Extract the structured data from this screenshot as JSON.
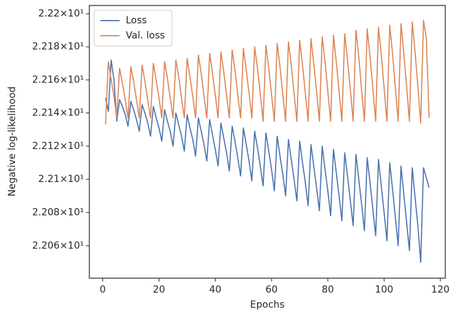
{
  "chart_data": {
    "type": "line",
    "xlabel": "Epochs",
    "ylabel": "Negative log-likelihood",
    "x": [
      1,
      2,
      3,
      4,
      5,
      6,
      7,
      8,
      9,
      10,
      11,
      12,
      13,
      14,
      15,
      16,
      17,
      18,
      19,
      20,
      21,
      22,
      23,
      24,
      25,
      26,
      27,
      28,
      29,
      30,
      31,
      32,
      33,
      34,
      35,
      36,
      37,
      38,
      39,
      40,
      41,
      42,
      43,
      44,
      45,
      46,
      47,
      48,
      49,
      50,
      51,
      52,
      53,
      54,
      55,
      56,
      57,
      58,
      59,
      60,
      61,
      62,
      63,
      64,
      65,
      66,
      67,
      68,
      69,
      70,
      71,
      72,
      73,
      74,
      75,
      76,
      77,
      78,
      79,
      80,
      81,
      82,
      83,
      84,
      85,
      86,
      87,
      88,
      89,
      90,
      91,
      92,
      93,
      94,
      95,
      96,
      97,
      98,
      99,
      100,
      101,
      102,
      103,
      104,
      105,
      106,
      107,
      108,
      109,
      110,
      111,
      112,
      113,
      114,
      115,
      116
    ],
    "series": [
      {
        "name": "Loss",
        "color": "#4c72b0",
        "values": [
          22.149,
          22.141,
          22.172,
          22.16,
          22.135,
          22.148,
          22.144,
          22.139,
          22.132,
          22.147,
          22.142,
          22.136,
          22.129,
          22.145,
          22.14,
          22.134,
          22.126,
          22.144,
          22.137,
          22.131,
          22.123,
          22.142,
          22.135,
          22.129,
          22.12,
          22.14,
          22.133,
          22.126,
          22.117,
          22.139,
          22.131,
          22.124,
          22.114,
          22.137,
          22.129,
          22.121,
          22.111,
          22.136,
          22.127,
          22.118,
          22.108,
          22.134,
          22.125,
          22.116,
          22.105,
          22.132,
          22.123,
          22.113,
          22.102,
          22.131,
          22.121,
          22.111,
          22.099,
          22.129,
          22.119,
          22.108,
          22.096,
          22.128,
          22.117,
          22.106,
          22.093,
          22.126,
          22.114,
          22.103,
          22.09,
          22.124,
          22.112,
          22.1,
          22.087,
          22.123,
          22.11,
          22.098,
          22.084,
          22.121,
          22.108,
          22.095,
          22.081,
          22.12,
          22.106,
          22.093,
          22.078,
          22.118,
          22.104,
          22.09,
          22.075,
          22.116,
          22.102,
          22.087,
          22.072,
          22.115,
          22.1,
          22.085,
          22.069,
          22.113,
          22.098,
          22.082,
          22.066,
          22.112,
          22.096,
          22.08,
          22.063,
          22.11,
          22.094,
          22.077,
          22.06,
          22.108,
          22.091,
          22.074,
          22.057,
          22.107,
          22.089,
          22.072,
          22.05,
          22.107,
          22.101,
          22.095
        ]
      },
      {
        "name": "Val. loss",
        "color": "#dd8452",
        "values": [
          22.133,
          22.171,
          22.16,
          22.15,
          22.137,
          22.167,
          22.158,
          22.148,
          22.137,
          22.168,
          22.159,
          22.148,
          22.137,
          22.169,
          22.159,
          22.148,
          22.137,
          22.17,
          22.16,
          22.149,
          22.137,
          22.171,
          22.161,
          22.149,
          22.137,
          22.172,
          22.162,
          22.149,
          22.137,
          22.173,
          22.162,
          22.15,
          22.137,
          22.175,
          22.164,
          22.15,
          22.137,
          22.176,
          22.164,
          22.151,
          22.137,
          22.177,
          22.165,
          22.151,
          22.137,
          22.178,
          22.166,
          22.151,
          22.137,
          22.179,
          22.166,
          22.152,
          22.137,
          22.18,
          22.167,
          22.152,
          22.135,
          22.181,
          22.167,
          22.151,
          22.135,
          22.182,
          22.168,
          22.151,
          22.135,
          22.183,
          22.169,
          22.152,
          22.135,
          22.184,
          22.169,
          22.152,
          22.135,
          22.185,
          22.17,
          22.153,
          22.135,
          22.186,
          22.171,
          22.153,
          22.135,
          22.187,
          22.171,
          22.153,
          22.135,
          22.188,
          22.172,
          22.154,
          22.135,
          22.19,
          22.174,
          22.154,
          22.135,
          22.191,
          22.174,
          22.155,
          22.135,
          22.192,
          22.175,
          22.155,
          22.135,
          22.193,
          22.176,
          22.155,
          22.135,
          22.194,
          22.176,
          22.156,
          22.135,
          22.195,
          22.177,
          22.156,
          22.134,
          22.196,
          22.185,
          22.137
        ]
      }
    ],
    "xlim": [
      -4.75,
      121.75
    ],
    "xticks": [
      0,
      20,
      40,
      60,
      80,
      100,
      120
    ],
    "ylim": [
      22.0405,
      22.205
    ],
    "log_y": true,
    "yticks": [
      {
        "value": 22.06,
        "label": "2.206×10¹"
      },
      {
        "value": 22.08,
        "label": "2.208×10¹"
      },
      {
        "value": 22.1,
        "label": "2.21×10¹"
      },
      {
        "value": 22.12,
        "label": "2.212×10¹"
      },
      {
        "value": 22.14,
        "label": "2.214×10¹"
      },
      {
        "value": 22.16,
        "label": "2.216×10¹"
      },
      {
        "value": 22.18,
        "label": "2.218×10¹"
      },
      {
        "value": 22.2,
        "label": "2.22×10¹"
      }
    ],
    "legend": "upper left"
  }
}
